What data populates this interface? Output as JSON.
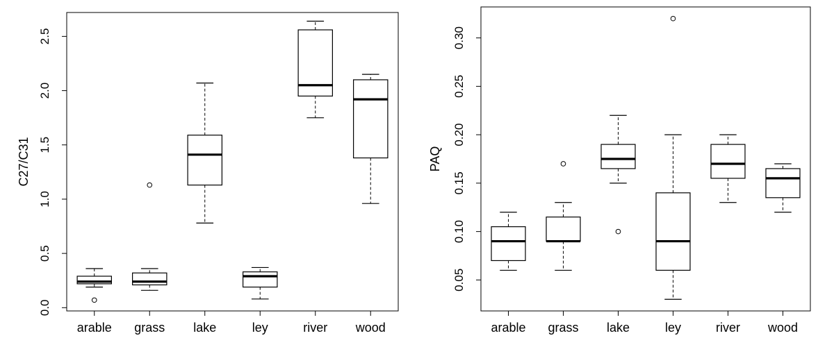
{
  "chart_data": [
    {
      "type": "boxplot",
      "ylabel": "C27/C31",
      "ylim": [
        -0.03,
        2.72
      ],
      "yticks": [
        "0.0",
        "0.5",
        "1.0",
        "1.5",
        "2.0",
        "2.5"
      ],
      "categories": [
        "arable",
        "grass",
        "lake",
        "ley",
        "river",
        "wood"
      ],
      "boxes": [
        {
          "category": "arable",
          "whisker_low": 0.19,
          "q1": 0.22,
          "median": 0.24,
          "q3": 0.29,
          "whisker_high": 0.36,
          "outliers": [
            0.07
          ]
        },
        {
          "category": "grass",
          "whisker_low": 0.16,
          "q1": 0.21,
          "median": 0.24,
          "q3": 0.32,
          "whisker_high": 0.36,
          "outliers": [
            1.13
          ]
        },
        {
          "category": "lake",
          "whisker_low": 0.78,
          "q1": 1.13,
          "median": 1.41,
          "q3": 1.59,
          "whisker_high": 2.07,
          "outliers": []
        },
        {
          "category": "ley",
          "whisker_low": 0.08,
          "q1": 0.19,
          "median": 0.29,
          "q3": 0.33,
          "whisker_high": 0.37,
          "outliers": []
        },
        {
          "category": "river",
          "whisker_low": 1.75,
          "q1": 1.95,
          "median": 2.05,
          "q3": 2.56,
          "whisker_high": 2.64,
          "outliers": []
        },
        {
          "category": "wood",
          "whisker_low": 0.96,
          "q1": 1.38,
          "median": 1.92,
          "q3": 2.1,
          "whisker_high": 2.15,
          "outliers": []
        }
      ]
    },
    {
      "type": "boxplot",
      "ylabel": "PAQ",
      "ylim": [
        0.018,
        0.332
      ],
      "yticks": [
        "0.05",
        "0.10",
        "0.15",
        "0.20",
        "0.25",
        "0.30"
      ],
      "categories": [
        "arable",
        "grass",
        "lake",
        "ley",
        "river",
        "wood"
      ],
      "boxes": [
        {
          "category": "arable",
          "whisker_low": 0.06,
          "q1": 0.07,
          "median": 0.09,
          "q3": 0.105,
          "whisker_high": 0.12,
          "outliers": []
        },
        {
          "category": "grass",
          "whisker_low": 0.06,
          "q1": 0.09,
          "median": 0.09,
          "q3": 0.115,
          "whisker_high": 0.13,
          "outliers": [
            0.17
          ]
        },
        {
          "category": "lake",
          "whisker_low": 0.15,
          "q1": 0.165,
          "median": 0.175,
          "q3": 0.19,
          "whisker_high": 0.22,
          "outliers": [
            0.1
          ]
        },
        {
          "category": "ley",
          "whisker_low": 0.03,
          "q1": 0.06,
          "median": 0.09,
          "q3": 0.14,
          "whisker_high": 0.2,
          "outliers": [
            0.32
          ]
        },
        {
          "category": "river",
          "whisker_low": 0.13,
          "q1": 0.155,
          "median": 0.17,
          "q3": 0.19,
          "whisker_high": 0.2,
          "outliers": []
        },
        {
          "category": "wood",
          "whisker_low": 0.12,
          "q1": 0.135,
          "median": 0.155,
          "q3": 0.165,
          "whisker_high": 0.17,
          "outliers": []
        }
      ]
    }
  ]
}
